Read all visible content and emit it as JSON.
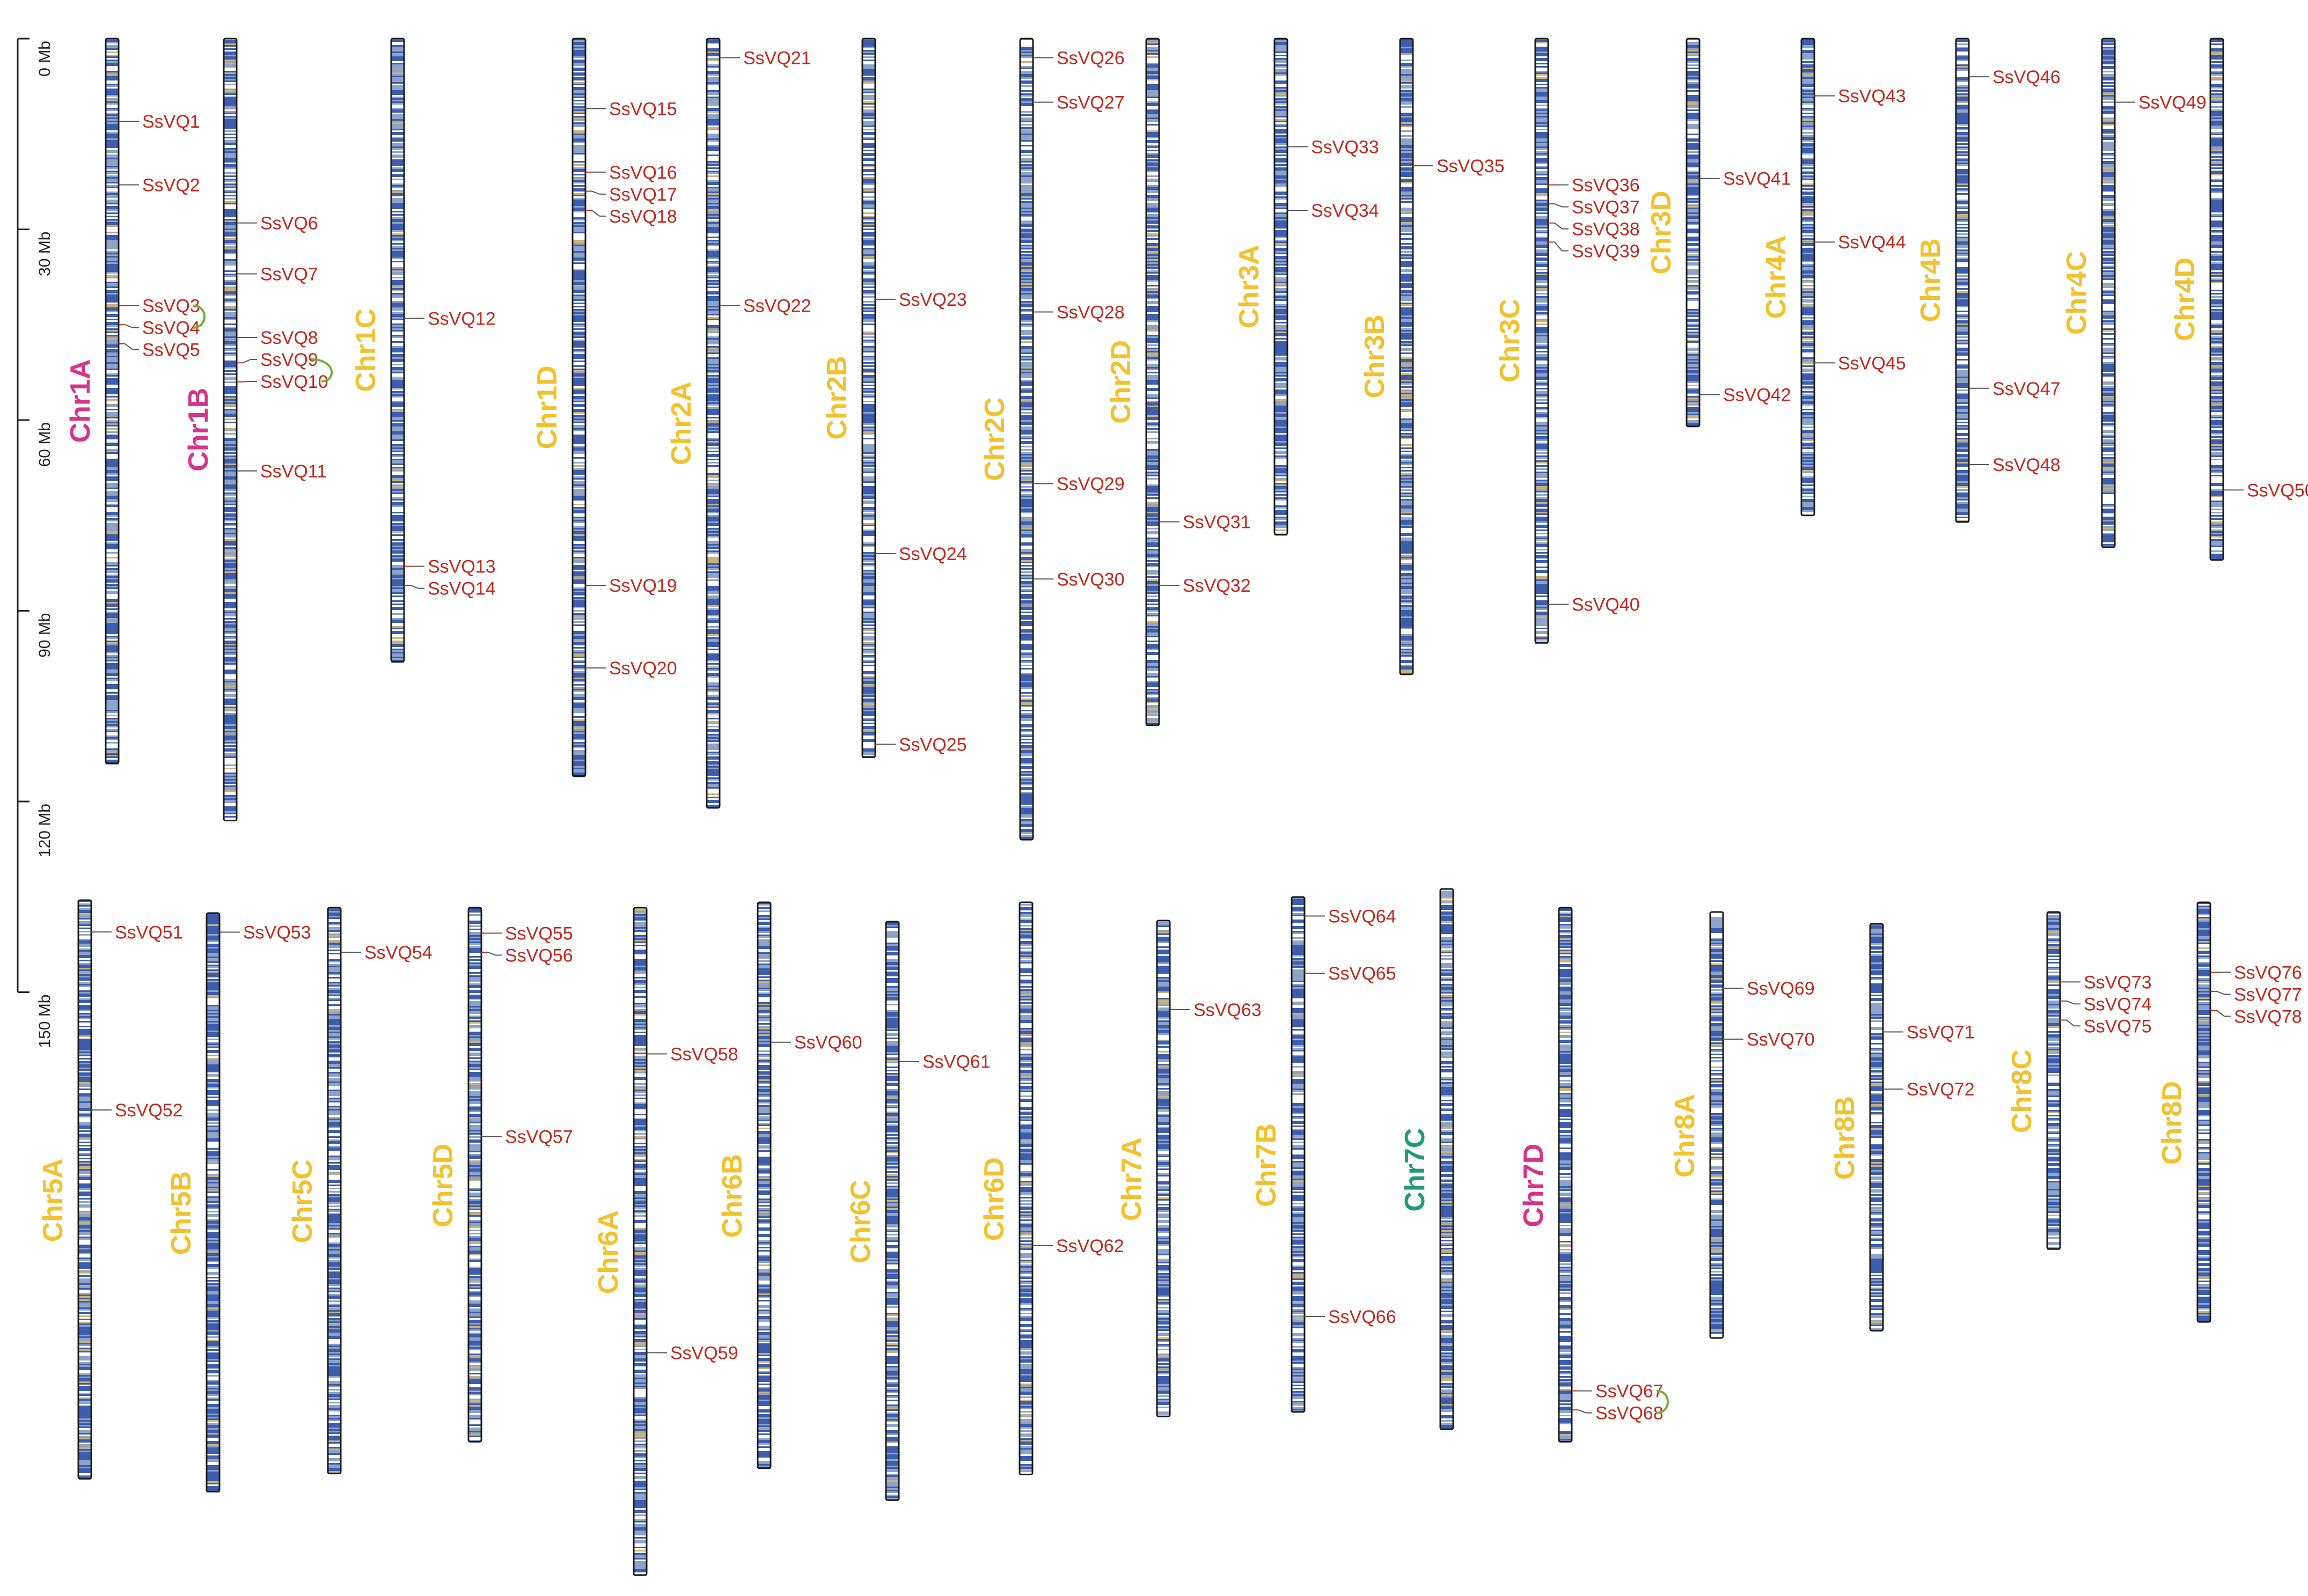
{
  "colors": {
    "gene_label": "#c0281e",
    "chr_default": "#f2c12e",
    "chr_magenta": "#d6338a",
    "chr_teal": "#1f9a7a",
    "density_high": "#3d5eae",
    "density_mid": "#8ea3c8",
    "density_low": "#ffffff",
    "density_warm": "#c9b27a",
    "duplication_link": "#6fae3a",
    "outline": "#1a1a1a"
  },
  "scale": {
    "ticks": [
      {
        "value": 0,
        "label": "0 Mb"
      },
      {
        "value": 30,
        "label": "30 Mb"
      },
      {
        "value": 60,
        "label": "60 Mb"
      },
      {
        "value": 90,
        "label": "90 Mb"
      },
      {
        "value": 120,
        "label": "120 Mb"
      },
      {
        "value": 150,
        "label": "150 Mb"
      }
    ]
  },
  "chromosomes": [
    {
      "name": "Chr1A",
      "row": 0,
      "length": 114,
      "color": "magenta",
      "genes": [
        {
          "id": "SsVQ1",
          "pos": 13
        },
        {
          "id": "SsVQ2",
          "pos": 23
        },
        {
          "id": "SsVQ3",
          "pos": 42
        },
        {
          "id": "SsVQ4",
          "pos": 45
        },
        {
          "id": "SsVQ5",
          "pos": 48
        }
      ]
    },
    {
      "name": "Chr1B",
      "row": 0,
      "length": 123,
      "color": "magenta",
      "genes": [
        {
          "id": "SsVQ6",
          "pos": 29
        },
        {
          "id": "SsVQ7",
          "pos": 37
        },
        {
          "id": "SsVQ8",
          "pos": 47
        },
        {
          "id": "SsVQ9",
          "pos": 51
        },
        {
          "id": "SsVQ10",
          "pos": 54
        },
        {
          "id": "SsVQ11",
          "pos": 68
        }
      ]
    },
    {
      "name": "Chr1C",
      "row": 0,
      "length": 98,
      "color": "default",
      "genes": [
        {
          "id": "SsVQ12",
          "pos": 44
        },
        {
          "id": "SsVQ13",
          "pos": 83
        },
        {
          "id": "SsVQ14",
          "pos": 86
        }
      ]
    },
    {
      "name": "Chr1D",
      "row": 0,
      "length": 116,
      "color": "default",
      "genes": [
        {
          "id": "SsVQ15",
          "pos": 11
        },
        {
          "id": "SsVQ16",
          "pos": 21
        },
        {
          "id": "SsVQ17",
          "pos": 24
        },
        {
          "id": "SsVQ18",
          "pos": 27
        },
        {
          "id": "SsVQ19",
          "pos": 86
        },
        {
          "id": "SsVQ20",
          "pos": 99
        }
      ]
    },
    {
      "name": "Chr2A",
      "row": 0,
      "length": 121,
      "color": "default",
      "genes": [
        {
          "id": "SsVQ21",
          "pos": 3
        },
        {
          "id": "SsVQ22",
          "pos": 42
        }
      ]
    },
    {
      "name": "Chr2B",
      "row": 0,
      "length": 113,
      "color": "default",
      "genes": [
        {
          "id": "SsVQ23",
          "pos": 41
        },
        {
          "id": "SsVQ24",
          "pos": 81
        },
        {
          "id": "SsVQ25",
          "pos": 111
        }
      ]
    },
    {
      "name": "Chr2C",
      "row": 0,
      "length": 126,
      "color": "default",
      "genes": [
        {
          "id": "SsVQ26",
          "pos": 3
        },
        {
          "id": "SsVQ27",
          "pos": 10
        },
        {
          "id": "SsVQ28",
          "pos": 43
        },
        {
          "id": "SsVQ29",
          "pos": 70
        },
        {
          "id": "SsVQ30",
          "pos": 85
        }
      ]
    },
    {
      "name": "Chr2D",
      "row": 0,
      "length": 108,
      "color": "default",
      "genes": [
        {
          "id": "SsVQ31",
          "pos": 76
        },
        {
          "id": "SsVQ32",
          "pos": 86
        }
      ]
    },
    {
      "name": "Chr3A",
      "row": 0,
      "length": 78,
      "color": "default",
      "genes": [
        {
          "id": "SsVQ33",
          "pos": 17
        },
        {
          "id": "SsVQ34",
          "pos": 27
        }
      ]
    },
    {
      "name": "Chr3B",
      "row": 0,
      "length": 100,
      "color": "default",
      "genes": [
        {
          "id": "SsVQ35",
          "pos": 20
        }
      ]
    },
    {
      "name": "Chr3C",
      "row": 0,
      "length": 95,
      "color": "default",
      "genes": [
        {
          "id": "SsVQ36",
          "pos": 23
        },
        {
          "id": "SsVQ37",
          "pos": 26
        },
        {
          "id": "SsVQ38",
          "pos": 29
        },
        {
          "id": "SsVQ39",
          "pos": 32
        },
        {
          "id": "SsVQ40",
          "pos": 89
        }
      ]
    },
    {
      "name": "Chr3D",
      "row": 0,
      "length": 61,
      "color": "default",
      "genes": [
        {
          "id": "SsVQ41",
          "pos": 22
        },
        {
          "id": "SsVQ42",
          "pos": 56
        }
      ]
    },
    {
      "name": "Chr4A",
      "row": 0,
      "length": 75,
      "color": "default",
      "genes": [
        {
          "id": "SsVQ43",
          "pos": 9
        },
        {
          "id": "SsVQ44",
          "pos": 32
        },
        {
          "id": "SsVQ45",
          "pos": 51
        }
      ]
    },
    {
      "name": "Chr4B",
      "row": 0,
      "length": 76,
      "color": "default",
      "genes": [
        {
          "id": "SsVQ46",
          "pos": 6
        },
        {
          "id": "SsVQ47",
          "pos": 55
        },
        {
          "id": "SsVQ48",
          "pos": 67
        }
      ]
    },
    {
      "name": "Chr4C",
      "row": 0,
      "length": 80,
      "color": "default",
      "genes": [
        {
          "id": "SsVQ49",
          "pos": 10
        }
      ]
    },
    {
      "name": "Chr4D",
      "row": 0,
      "length": 82,
      "color": "default",
      "genes": [
        {
          "id": "SsVQ50",
          "pos": 71
        }
      ]
    },
    {
      "name": "Chr5A",
      "row": 1,
      "length": 91,
      "color": "default",
      "genes": [
        {
          "id": "SsVQ51",
          "pos": 5
        },
        {
          "id": "SsVQ52",
          "pos": 33
        }
      ]
    },
    {
      "name": "Chr5B",
      "row": 1,
      "length": 91,
      "color": "default",
      "genes": [
        {
          "id": "SsVQ53",
          "pos": 3
        }
      ]
    },
    {
      "name": "Chr5C",
      "row": 1,
      "length": 89,
      "color": "default",
      "genes": [
        {
          "id": "SsVQ54",
          "pos": 7
        }
      ]
    },
    {
      "name": "Chr5D",
      "row": 1,
      "length": 84,
      "color": "default",
      "genes": [
        {
          "id": "SsVQ55",
          "pos": 4
        },
        {
          "id": "SsVQ56",
          "pos": 7
        },
        {
          "id": "SsVQ57",
          "pos": 36
        }
      ]
    },
    {
      "name": "Chr6A",
      "row": 1,
      "length": 105,
      "color": "default",
      "genes": [
        {
          "id": "SsVQ58",
          "pos": 23
        },
        {
          "id": "SsVQ59",
          "pos": 70
        }
      ]
    },
    {
      "name": "Chr6B",
      "row": 1,
      "length": 89,
      "color": "default",
      "genes": [
        {
          "id": "SsVQ60",
          "pos": 22
        }
      ]
    },
    {
      "name": "Chr6C",
      "row": 1,
      "length": 91,
      "color": "default",
      "genes": [
        {
          "id": "SsVQ61",
          "pos": 22
        }
      ]
    },
    {
      "name": "Chr6D",
      "row": 1,
      "length": 90,
      "color": "default",
      "genes": [
        {
          "id": "SsVQ62",
          "pos": 54
        }
      ]
    },
    {
      "name": "Chr7A",
      "row": 1,
      "length": 78,
      "color": "default",
      "genes": [
        {
          "id": "SsVQ63",
          "pos": 14
        }
      ]
    },
    {
      "name": "Chr7B",
      "row": 1,
      "length": 81,
      "color": "default",
      "genes": [
        {
          "id": "SsVQ64",
          "pos": 3
        },
        {
          "id": "SsVQ65",
          "pos": 12
        },
        {
          "id": "SsVQ66",
          "pos": 66
        }
      ]
    },
    {
      "name": "Chr7C",
      "row": 1,
      "length": 85,
      "color": "teal",
      "genes": []
    },
    {
      "name": "Chr7D",
      "row": 1,
      "length": 84,
      "color": "magenta",
      "genes": [
        {
          "id": "SsVQ67",
          "pos": 76
        },
        {
          "id": "SsVQ68",
          "pos": 79
        }
      ]
    },
    {
      "name": "Chr8A",
      "row": 1,
      "length": 67,
      "color": "default",
      "genes": [
        {
          "id": "SsVQ69",
          "pos": 12
        },
        {
          "id": "SsVQ70",
          "pos": 20
        }
      ]
    },
    {
      "name": "Chr8B",
      "row": 1,
      "length": 64,
      "color": "default",
      "genes": [
        {
          "id": "SsVQ71",
          "pos": 17
        },
        {
          "id": "SsVQ72",
          "pos": 26
        }
      ]
    },
    {
      "name": "Chr8C",
      "row": 1,
      "length": 53,
      "color": "default",
      "genes": [
        {
          "id": "SsVQ73",
          "pos": 11
        },
        {
          "id": "SsVQ74",
          "pos": 14
        },
        {
          "id": "SsVQ75",
          "pos": 17
        }
      ]
    },
    {
      "name": "Chr8D",
      "row": 1,
      "length": 66,
      "color": "default",
      "genes": [
        {
          "id": "SsVQ76",
          "pos": 11
        },
        {
          "id": "SsVQ77",
          "pos": 14
        },
        {
          "id": "SsVQ78",
          "pos": 17
        }
      ]
    }
  ],
  "duplications": [
    {
      "a": "SsVQ3",
      "b": "SsVQ4"
    },
    {
      "a": "SsVQ9",
      "b": "SsVQ10"
    },
    {
      "a": "SsVQ67",
      "b": "SsVQ68"
    }
  ]
}
